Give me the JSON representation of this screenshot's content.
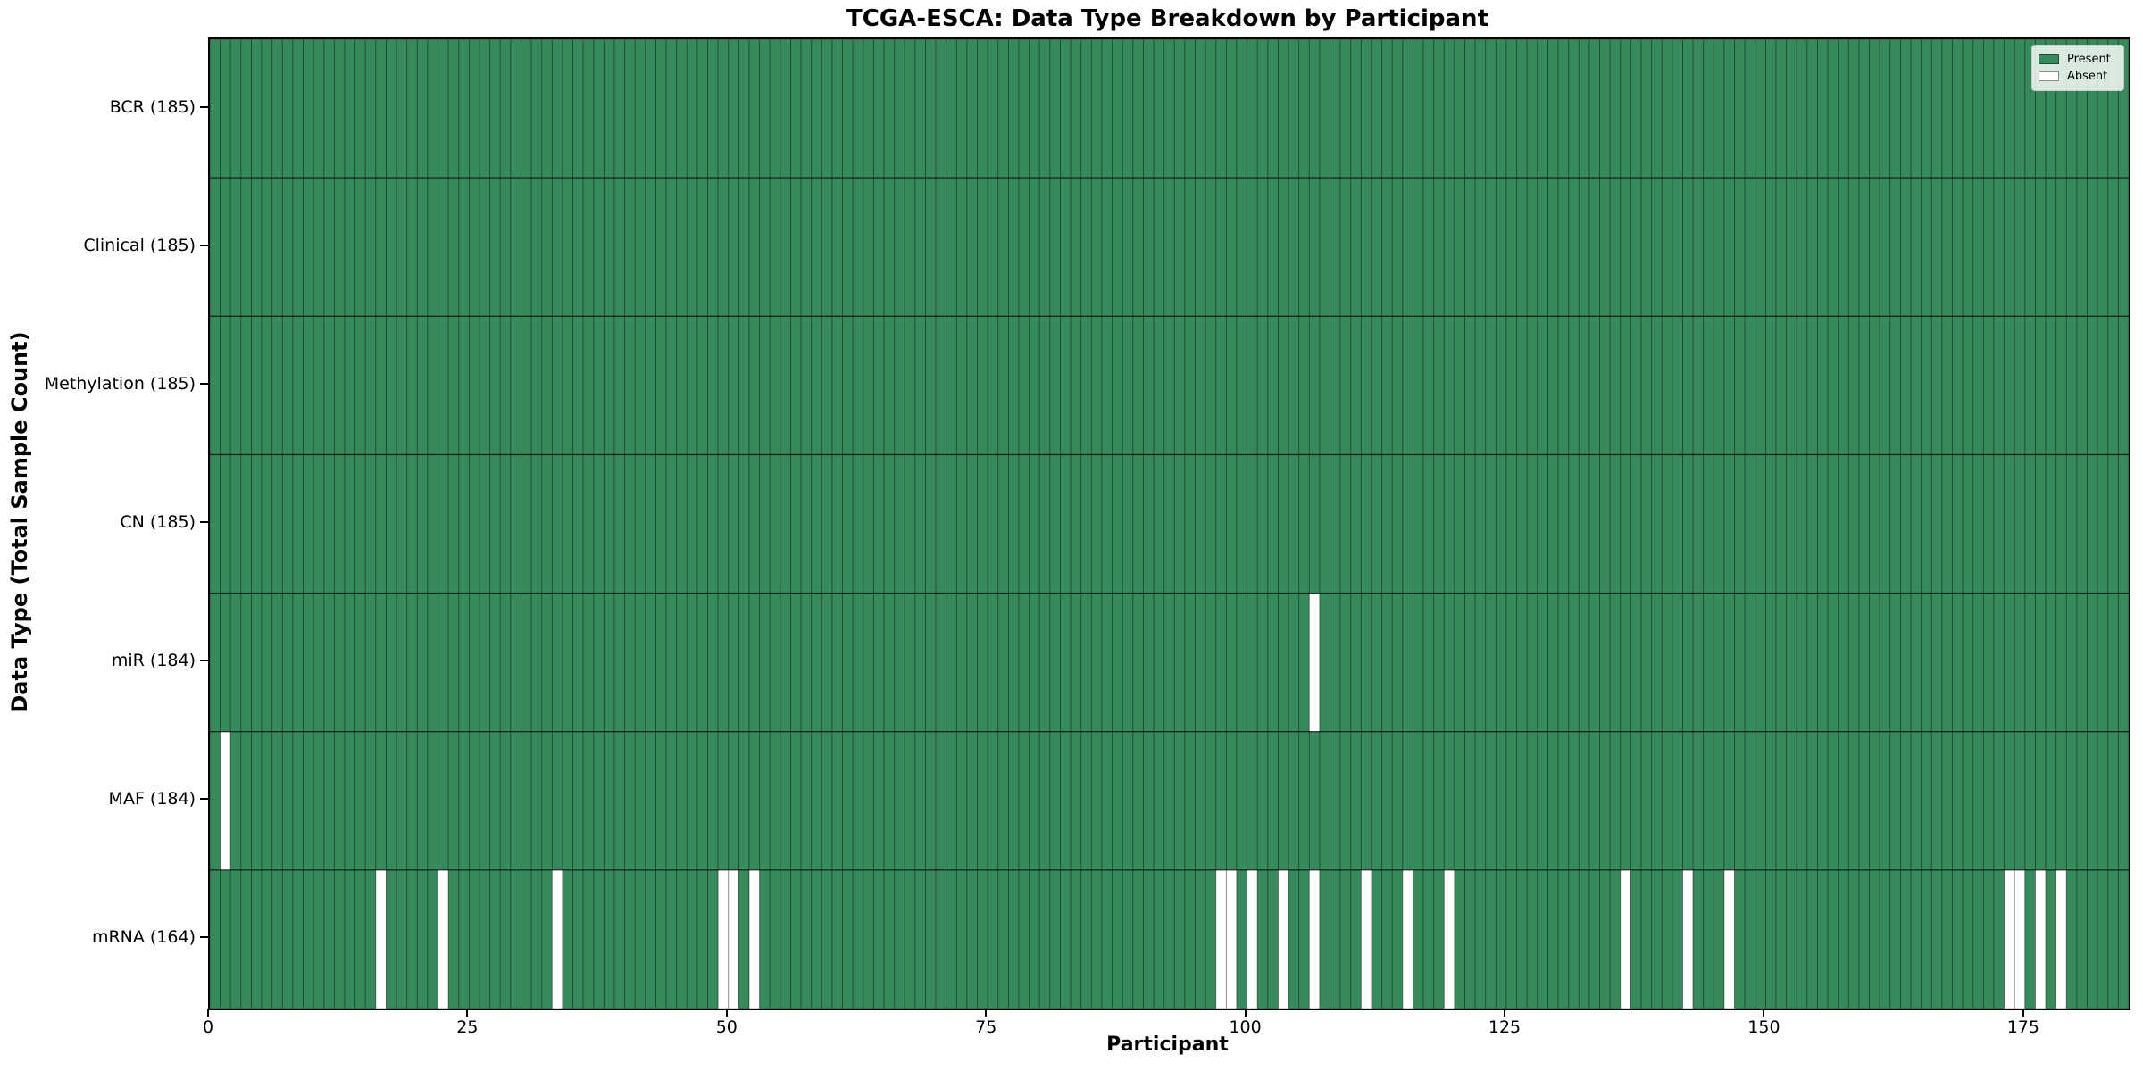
{
  "chart_data": {
    "type": "heatmap",
    "title": "TCGA-ESCA: Data Type Breakdown by Participant",
    "xlabel": "Participant",
    "ylabel": "Data Type (Total Sample Count)",
    "n_participants": 185,
    "xlim": [
      0,
      185
    ],
    "x_ticks": [
      0,
      25,
      50,
      75,
      100,
      125,
      150,
      175
    ],
    "grid": "cell-borders",
    "rows": [
      {
        "label": "BCR (185)",
        "data_type": "BCR",
        "present_count": 185,
        "absent_participants": []
      },
      {
        "label": "Clinical (185)",
        "data_type": "Clinical",
        "present_count": 185,
        "absent_participants": []
      },
      {
        "label": "Methylation (185)",
        "data_type": "Methylation",
        "present_count": 185,
        "absent_participants": []
      },
      {
        "label": "CN (185)",
        "data_type": "CN",
        "present_count": 185,
        "absent_participants": []
      },
      {
        "label": "miR (184)",
        "data_type": "miR",
        "present_count": 184,
        "absent_participants": [
          106
        ]
      },
      {
        "label": "MAF (184)",
        "data_type": "MAF",
        "present_count": 184,
        "absent_participants": [
          1
        ]
      },
      {
        "label": "mRNA (164)",
        "data_type": "mRNA",
        "present_count": 164,
        "absent_participants": [
          16,
          22,
          33,
          49,
          50,
          52,
          97,
          98,
          100,
          103,
          106,
          111,
          115,
          119,
          136,
          142,
          146,
          173,
          174,
          176,
          178
        ]
      }
    ],
    "legend": {
      "position": "upper right",
      "entries": [
        {
          "label": "Present",
          "color": "#378a5c"
        },
        {
          "label": "Absent",
          "color": "#ffffff"
        }
      ]
    },
    "colors": {
      "present": "#378a5c",
      "absent": "#ffffff",
      "cell_edge": "rgba(0,0,0,0.38)",
      "row_divider": "rgba(0,0,0,0.55)",
      "axes_edge": "#000000",
      "background": "#ffffff"
    }
  }
}
